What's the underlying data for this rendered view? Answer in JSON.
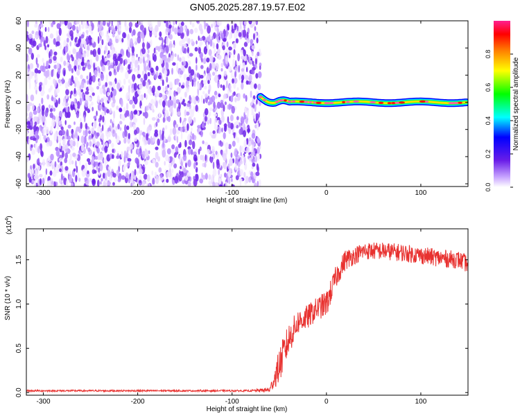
{
  "page_title": "GN05.2025.287.19.57.E02",
  "colors": {
    "signal_line": "#e8312f",
    "noise_purple": "#6a1ee8",
    "frame": "#000000"
  },
  "chart_data": [
    {
      "type": "heatmap",
      "title": "GN05.2025.287.19.57.E02",
      "xlabel": "Height of straight line (km)",
      "ylabel": "Frequency (Hz)",
      "xlim": [
        -318,
        150
      ],
      "ylim": [
        -62,
        60
      ],
      "xticks": [
        -300,
        -200,
        -100,
        0,
        100
      ],
      "yticks": [
        -60,
        -40,
        -20,
        0,
        20,
        40,
        60
      ],
      "noise_region_x": [
        -318,
        -70
      ],
      "signal_track_x": [
        -70,
        150
      ],
      "signal_track_freq_hz": 0,
      "colorbar": {
        "label": "Normalized spectral amplitude",
        "range": [
          0.0,
          1.0
        ],
        "ticks": [
          "0.0",
          "0.2",
          "0.4",
          "0.6",
          "0.8"
        ],
        "tick_values": [
          0.0,
          0.2,
          0.4,
          0.6,
          0.8
        ],
        "colormap": "rainbow"
      }
    },
    {
      "type": "line",
      "xlabel": "Height of straight line (km)",
      "ylabel": "SNR (10 * v/v)",
      "y_multiplier": "(x10",
      "y_multiplier_exp": "4",
      "xlim": [
        -318,
        150
      ],
      "ylim": [
        -0.03,
        1.85
      ],
      "xticks": [
        -300,
        -200,
        -100,
        0,
        100
      ],
      "yticks": [
        "0.0",
        "0.5",
        "1.0",
        "1.5"
      ],
      "ytick_values": [
        0.0,
        0.5,
        1.0,
        1.5
      ],
      "series": [
        {
          "name": "SNR",
          "x": [
            -318,
            -250,
            -150,
            -80,
            -60,
            -50,
            -45,
            -40,
            -35,
            -30,
            -20,
            -10,
            0,
            10,
            15,
            20,
            30,
            40,
            60,
            80,
            100,
            120,
            140,
            150
          ],
          "mean": [
            0.02,
            0.02,
            0.02,
            0.02,
            0.03,
            0.3,
            0.45,
            0.6,
            0.7,
            0.8,
            0.85,
            0.95,
            1.0,
            1.3,
            1.4,
            1.5,
            1.55,
            1.6,
            1.6,
            1.58,
            1.55,
            1.52,
            1.5,
            1.45
          ],
          "amp": [
            0.01,
            0.01,
            0.01,
            0.01,
            0.03,
            0.2,
            0.2,
            0.18,
            0.16,
            0.14,
            0.14,
            0.13,
            0.15,
            0.13,
            0.12,
            0.12,
            0.1,
            0.1,
            0.1,
            0.1,
            0.1,
            0.1,
            0.1,
            0.1
          ]
        }
      ]
    }
  ]
}
